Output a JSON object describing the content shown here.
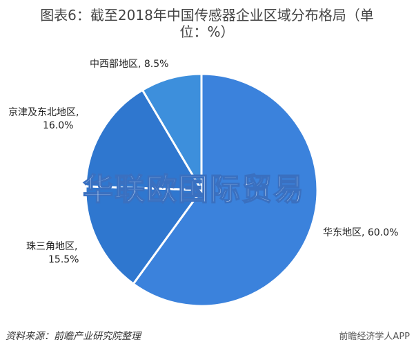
{
  "chart_data": {
    "type": "pie",
    "title_line1": "图表6：截至2018年中国传感器企业区域分布格局（单",
    "title_line2": "位：%）",
    "slices": [
      {
        "label": "华东地区, 60.0%",
        "name": "华东地区",
        "value": 60.0,
        "color": "#3b82dc"
      },
      {
        "label_l1": "珠三角地区,",
        "label_l2": "15.5%",
        "name": "珠三角地区",
        "value": 15.5,
        "color": "#2f77cf"
      },
      {
        "label_l1": "京津及东北地区,",
        "label_l2": "16.0%",
        "name": "京津及东北地区",
        "value": 16.0,
        "color": "#2f77cf"
      },
      {
        "label": "中西部地区, 8.5%",
        "name": "中西部地区",
        "value": 8.5,
        "color": "#3d8fdc"
      }
    ],
    "start": "12 o'clock",
    "direction": "clockwise",
    "separator_color": "#ffffff"
  },
  "source": "资料来源：前瞻产业研究院整理",
  "watermark": "华联欧国际贸易",
  "brand_watermark": "前瞻经济学人APP"
}
